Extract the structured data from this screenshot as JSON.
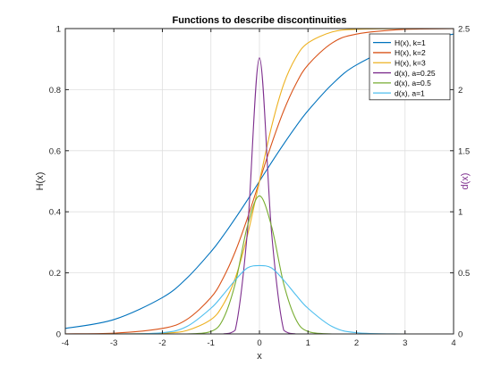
{
  "chart_data": {
    "type": "line",
    "title": "Functions to describe discontinuities",
    "xlabel": "x",
    "ylabel_left": "H(x)",
    "ylabel_right": "d(x)",
    "xlim": [
      -4,
      4
    ],
    "ylim_left": [
      0,
      1
    ],
    "ylim_right": [
      0,
      2.5
    ],
    "x_ticks": [
      "-4",
      "-3",
      "-2",
      "-1",
      "0",
      "1",
      "2",
      "3",
      "4"
    ],
    "y_left_ticks": [
      "0",
      "0.2",
      "0.4",
      "0.6",
      "0.8",
      "1"
    ],
    "y_right_ticks": [
      "0",
      "0.5",
      "1",
      "1.5",
      "2",
      "2.5"
    ],
    "grid": true,
    "legend_placement": "top-right",
    "right_axis_color": "#7e2f8e",
    "x": [
      -4.0,
      -3.0,
      -2.0,
      -1.5,
      -1.0,
      -0.75,
      -0.5,
      -0.25,
      0.0,
      0.25,
      0.5,
      0.75,
      1.0,
      1.5,
      2.0,
      3.0,
      4.0
    ],
    "series": [
      {
        "name": "H(x), k=1",
        "axis": "left",
        "color": "#0072bd",
        "values": [
          0.018,
          0.047,
          0.119,
          0.182,
          0.269,
          0.321,
          0.378,
          0.438,
          0.5,
          0.562,
          0.622,
          0.679,
          0.731,
          0.818,
          0.881,
          0.953,
          0.982
        ]
      },
      {
        "name": "H(x), k=2",
        "axis": "left",
        "color": "#d95319",
        "values": [
          0.0003,
          0.0025,
          0.018,
          0.047,
          0.119,
          0.182,
          0.269,
          0.378,
          0.5,
          0.622,
          0.731,
          0.818,
          0.881,
          0.953,
          0.982,
          0.9975,
          0.9997
        ]
      },
      {
        "name": "H(x), k=3",
        "axis": "left",
        "color": "#edb120",
        "values": [
          0.0,
          0.0001,
          0.0025,
          0.011,
          0.047,
          0.095,
          0.182,
          0.321,
          0.5,
          0.679,
          0.818,
          0.905,
          0.953,
          0.989,
          0.9975,
          0.9999,
          1.0
        ]
      },
      {
        "name": "d(x), a=0.25",
        "axis": "right",
        "color": "#7e2f8e",
        "values": [
          0.0,
          0.0,
          0.0,
          0.0,
          0.0,
          0.0,
          0.03,
          0.83,
          2.26,
          0.83,
          0.03,
          0.0,
          0.0,
          0.0,
          0.0,
          0.0,
          0.0
        ]
      },
      {
        "name": "d(x), a=0.5",
        "axis": "right",
        "color": "#77ac30",
        "values": [
          0.0,
          0.0,
          0.0,
          0.0,
          0.02,
          0.12,
          0.41,
          0.88,
          1.13,
          0.88,
          0.41,
          0.12,
          0.02,
          0.0,
          0.0,
          0.0,
          0.0
        ]
      },
      {
        "name": "d(x), a=1",
        "axis": "right",
        "color": "#4dbeee",
        "values": [
          0.0,
          0.0,
          0.01,
          0.06,
          0.21,
          0.32,
          0.44,
          0.54,
          0.56,
          0.54,
          0.44,
          0.32,
          0.21,
          0.06,
          0.01,
          0.0,
          0.0
        ]
      }
    ]
  }
}
